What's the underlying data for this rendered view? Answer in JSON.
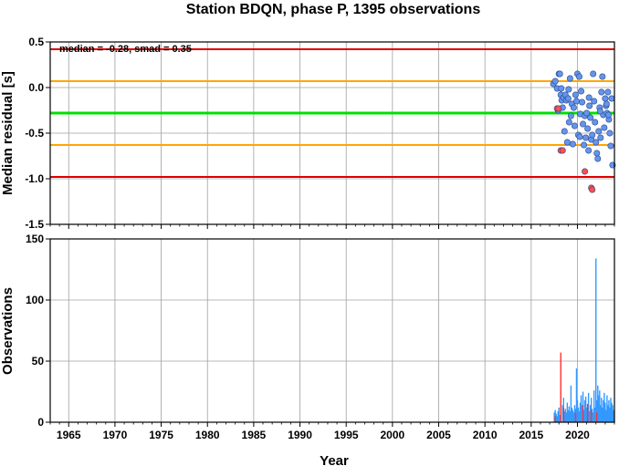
{
  "chart_data": {
    "title": "Station BDQN, phase P, 1395 observations",
    "xlabel": "Year",
    "x_ticks": [
      1965,
      1970,
      1975,
      1980,
      1985,
      1990,
      1995,
      2000,
      2005,
      2010,
      2015,
      2020
    ],
    "xlim": [
      1963,
      2024
    ],
    "grid": true,
    "panels": [
      {
        "type": "scatter",
        "ylabel": "Median residual [s]",
        "ylim": [
          -1.5,
          0.5
        ],
        "y_ticks": [
          "0.5",
          "0.0",
          "-0.5",
          "-1.0",
          "-1.5"
        ],
        "annotation": "median = -0.28, smad = 0.35",
        "reference_lines": [
          {
            "name": "median",
            "value": -0.28,
            "color": "#00e000"
          },
          {
            "name": "median + smad",
            "value": 0.07,
            "color": "#ffa500"
          },
          {
            "name": "median - smad",
            "value": -0.63,
            "color": "#ffa500"
          },
          {
            "name": "median + 2 smad",
            "value": 0.42,
            "color": "#e00000"
          },
          {
            "name": "median - 2 smad",
            "value": -0.98,
            "color": "#e00000"
          }
        ],
        "series": [
          {
            "color": "#6495ed",
            "points": [
              [
                2017.4,
                0.04
              ],
              [
                2017.6,
                0.07
              ],
              [
                2017.8,
                -0.01
              ],
              [
                2017.9,
                -0.25
              ],
              [
                2018.0,
                0.15
              ],
              [
                2018.1,
                0.15
              ],
              [
                2018.2,
                -0.08
              ],
              [
                2018.3,
                -0.14
              ],
              [
                2018.4,
                -0.22
              ],
              [
                2018.5,
                -0.11
              ],
              [
                2018.6,
                -0.48
              ],
              [
                2018.7,
                -0.08
              ],
              [
                2018.8,
                -0.14
              ],
              [
                2018.9,
                -0.6
              ],
              [
                2019.0,
                -0.12
              ],
              [
                2019.1,
                -0.38
              ],
              [
                2019.2,
                0.1
              ],
              [
                2019.3,
                -0.31
              ],
              [
                2019.4,
                -0.18
              ],
              [
                2019.5,
                -0.62
              ],
              [
                2019.6,
                -0.22
              ],
              [
                2019.7,
                -0.42
              ],
              [
                2019.8,
                -0.08
              ],
              [
                2019.9,
                -0.15
              ],
              [
                2020.0,
                0.15
              ],
              [
                2020.1,
                -0.52
              ],
              [
                2020.2,
                0.12
              ],
              [
                2020.3,
                -0.29
              ],
              [
                2020.4,
                -0.04
              ],
              [
                2020.5,
                -0.16
              ],
              [
                2020.6,
                -0.4
              ],
              [
                2020.7,
                -0.63
              ],
              [
                2020.8,
                -0.31
              ],
              [
                2020.9,
                -0.55
              ],
              [
                2021.0,
                -0.28
              ],
              [
                2021.1,
                -0.45
              ],
              [
                2021.2,
                -0.69
              ],
              [
                2021.3,
                -0.2
              ],
              [
                2021.4,
                -0.33
              ],
              [
                2021.5,
                -0.57
              ],
              [
                2021.6,
                -0.52
              ],
              [
                2021.7,
                0.15
              ],
              [
                2021.8,
                -0.15
              ],
              [
                2021.9,
                -0.38
              ],
              [
                2022.0,
                -0.6
              ],
              [
                2022.1,
                -0.72
              ],
              [
                2022.2,
                -0.78
              ],
              [
                2022.3,
                -0.48
              ],
              [
                2022.4,
                -0.22
              ],
              [
                2022.5,
                -0.55
              ],
              [
                2022.6,
                -0.05
              ],
              [
                2022.7,
                0.12
              ],
              [
                2022.8,
                -0.3
              ],
              [
                2022.9,
                -0.44
              ],
              [
                2023.0,
                -0.12
              ],
              [
                2023.1,
                -0.2
              ],
              [
                2023.2,
                -0.28
              ],
              [
                2023.3,
                -0.05
              ],
              [
                2023.4,
                -0.35
              ],
              [
                2023.5,
                -0.5
              ],
              [
                2023.6,
                -0.64
              ],
              [
                2023.7,
                -0.12
              ],
              [
                2023.8,
                -0.85
              ],
              [
                2018.25,
                -0.01
              ],
              [
                2019.05,
                -0.02
              ],
              [
                2020.25,
                -0.54
              ],
              [
                2021.25,
                -0.11
              ],
              [
                2022.45,
                -0.26
              ],
              [
                2023.15,
                -0.18
              ],
              [
                2023.35,
                -0.3
              ]
            ]
          },
          {
            "color": "#ff5050",
            "points": [
              [
                2017.8,
                -0.23
              ],
              [
                2017.95,
                -0.23
              ],
              [
                2018.2,
                -0.69
              ],
              [
                2018.4,
                -0.69
              ],
              [
                2020.8,
                -0.92
              ],
              [
                2021.5,
                -1.1
              ],
              [
                2021.6,
                -1.12
              ]
            ]
          }
        ]
      },
      {
        "type": "bar",
        "ylabel": "Observations",
        "ylim": [
          0,
          150
        ],
        "y_ticks": [
          "0",
          "50",
          "100",
          "150"
        ],
        "series": [
          {
            "color": "#3399ff",
            "points": [
              [
                2017.5,
                8
              ],
              [
                2017.6,
                10
              ],
              [
                2017.7,
                7
              ],
              [
                2017.8,
                5
              ],
              [
                2017.9,
                9
              ],
              [
                2018.0,
                12
              ],
              [
                2018.1,
                6
              ],
              [
                2018.4,
                14
              ],
              [
                2018.5,
                20
              ],
              [
                2018.6,
                9
              ],
              [
                2018.7,
                11
              ],
              [
                2018.8,
                8
              ],
              [
                2018.9,
                16
              ],
              [
                2019.0,
                10
              ],
              [
                2019.1,
                13
              ],
              [
                2019.2,
                9
              ],
              [
                2019.3,
                30
              ],
              [
                2019.4,
                12
              ],
              [
                2019.5,
                10
              ],
              [
                2019.6,
                8
              ],
              [
                2019.7,
                14
              ],
              [
                2019.8,
                11
              ],
              [
                2019.9,
                44
              ],
              [
                2020.0,
                18
              ],
              [
                2020.1,
                12
              ],
              [
                2020.2,
                9
              ],
              [
                2020.3,
                16
              ],
              [
                2020.4,
                22
              ],
              [
                2020.5,
                14
              ],
              [
                2020.6,
                25
              ],
              [
                2020.7,
                10
              ],
              [
                2020.8,
                18
              ],
              [
                2020.9,
                21
              ],
              [
                2021.0,
                12
              ],
              [
                2021.1,
                15
              ],
              [
                2021.2,
                24
              ],
              [
                2021.3,
                9
              ],
              [
                2021.4,
                14
              ],
              [
                2021.5,
                20
              ],
              [
                2021.6,
                11
              ],
              [
                2021.7,
                8
              ],
              [
                2021.8,
                26
              ],
              [
                2021.9,
                12
              ],
              [
                2022.0,
                134
              ],
              [
                2022.1,
                18
              ],
              [
                2022.2,
                30
              ],
              [
                2022.3,
                22
              ],
              [
                2022.4,
                26
              ],
              [
                2022.5,
                14
              ],
              [
                2022.6,
                20
              ],
              [
                2022.7,
                12
              ],
              [
                2022.8,
                18
              ],
              [
                2022.9,
                24
              ],
              [
                2023.0,
                16
              ],
              [
                2023.1,
                10
              ],
              [
                2023.2,
                22
              ],
              [
                2023.3,
                14
              ],
              [
                2023.4,
                18
              ],
              [
                2023.5,
                12
              ],
              [
                2023.6,
                20
              ],
              [
                2023.7,
                16
              ],
              [
                2023.8,
                14
              ],
              [
                2023.9,
                10
              ]
            ]
          },
          {
            "color": "#ff3030",
            "points": [
              [
                2017.6,
                5
              ],
              [
                2018.2,
                57
              ],
              [
                2018.5,
                12
              ],
              [
                2019.8,
                8
              ],
              [
                2020.6,
                14
              ],
              [
                2021.1,
                15
              ],
              [
                2021.5,
                10
              ],
              [
                2022.1,
                8
              ]
            ]
          }
        ]
      }
    ]
  }
}
